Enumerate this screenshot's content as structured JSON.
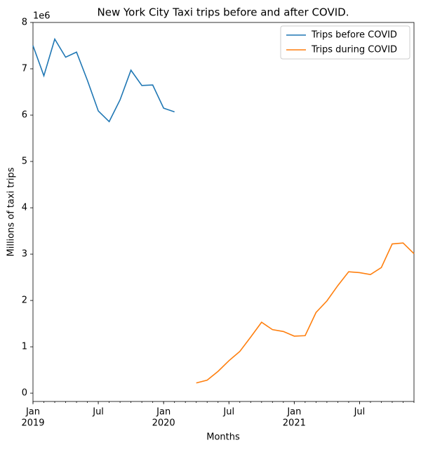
{
  "chart_data": {
    "type": "line",
    "title": "New York City Taxi trips before and after COVID.",
    "xlabel": "Months",
    "ylabel": "Millions of taxi trips",
    "y_offset_label": "1e6",
    "x": [
      "2019-01",
      "2019-02",
      "2019-03",
      "2019-04",
      "2019-05",
      "2019-06",
      "2019-07",
      "2019-08",
      "2019-09",
      "2019-10",
      "2019-11",
      "2019-12",
      "2020-01",
      "2020-02",
      "2020-03",
      "2020-04",
      "2020-05",
      "2020-06",
      "2020-07",
      "2020-08",
      "2020-09",
      "2020-10",
      "2020-11",
      "2020-12",
      "2021-01",
      "2021-02",
      "2021-03",
      "2021-04",
      "2021-05",
      "2021-06",
      "2021-07",
      "2021-08",
      "2021-09",
      "2021-10",
      "2021-11",
      "2021-12"
    ],
    "series": [
      {
        "name": "Trips before COVID",
        "color": "#1f77b4",
        "values": [
          7.5,
          6.85,
          7.64,
          7.25,
          7.36,
          6.75,
          6.09,
          5.86,
          6.33,
          6.97,
          6.64,
          6.65,
          6.15,
          6.07,
          null,
          null,
          null,
          null,
          null,
          null,
          null,
          null,
          null,
          null,
          null,
          null,
          null,
          null,
          null,
          null,
          null,
          null,
          null,
          null,
          null,
          null
        ]
      },
      {
        "name": "Trips during COVID",
        "color": "#ff7f0e",
        "values": [
          null,
          null,
          null,
          null,
          null,
          null,
          null,
          null,
          null,
          null,
          null,
          null,
          null,
          null,
          null,
          0.22,
          0.28,
          0.47,
          0.7,
          0.9,
          1.21,
          1.53,
          1.37,
          1.33,
          1.23,
          1.24,
          1.74,
          1.99,
          2.32,
          2.62,
          2.6,
          2.56,
          2.71,
          3.22,
          3.24,
          3.01
        ]
      }
    ],
    "xlim": [
      "2019-01",
      "2021-12"
    ],
    "xticks": [
      {
        "value": "2019-01",
        "label": "Jan",
        "sublabel": "2019"
      },
      {
        "value": "2019-07",
        "label": "Jul"
      },
      {
        "value": "2020-01",
        "label": "Jan",
        "sublabel": "2020"
      },
      {
        "value": "2020-07",
        "label": "Jul"
      },
      {
        "value": "2021-01",
        "label": "Jan",
        "sublabel": "2021"
      },
      {
        "value": "2021-07",
        "label": "Jul"
      }
    ],
    "ylim": [
      -0.18,
      8
    ],
    "yticks": [
      0,
      1,
      2,
      3,
      4,
      5,
      6,
      7,
      8
    ],
    "legend": "upper right",
    "grid": false
  }
}
